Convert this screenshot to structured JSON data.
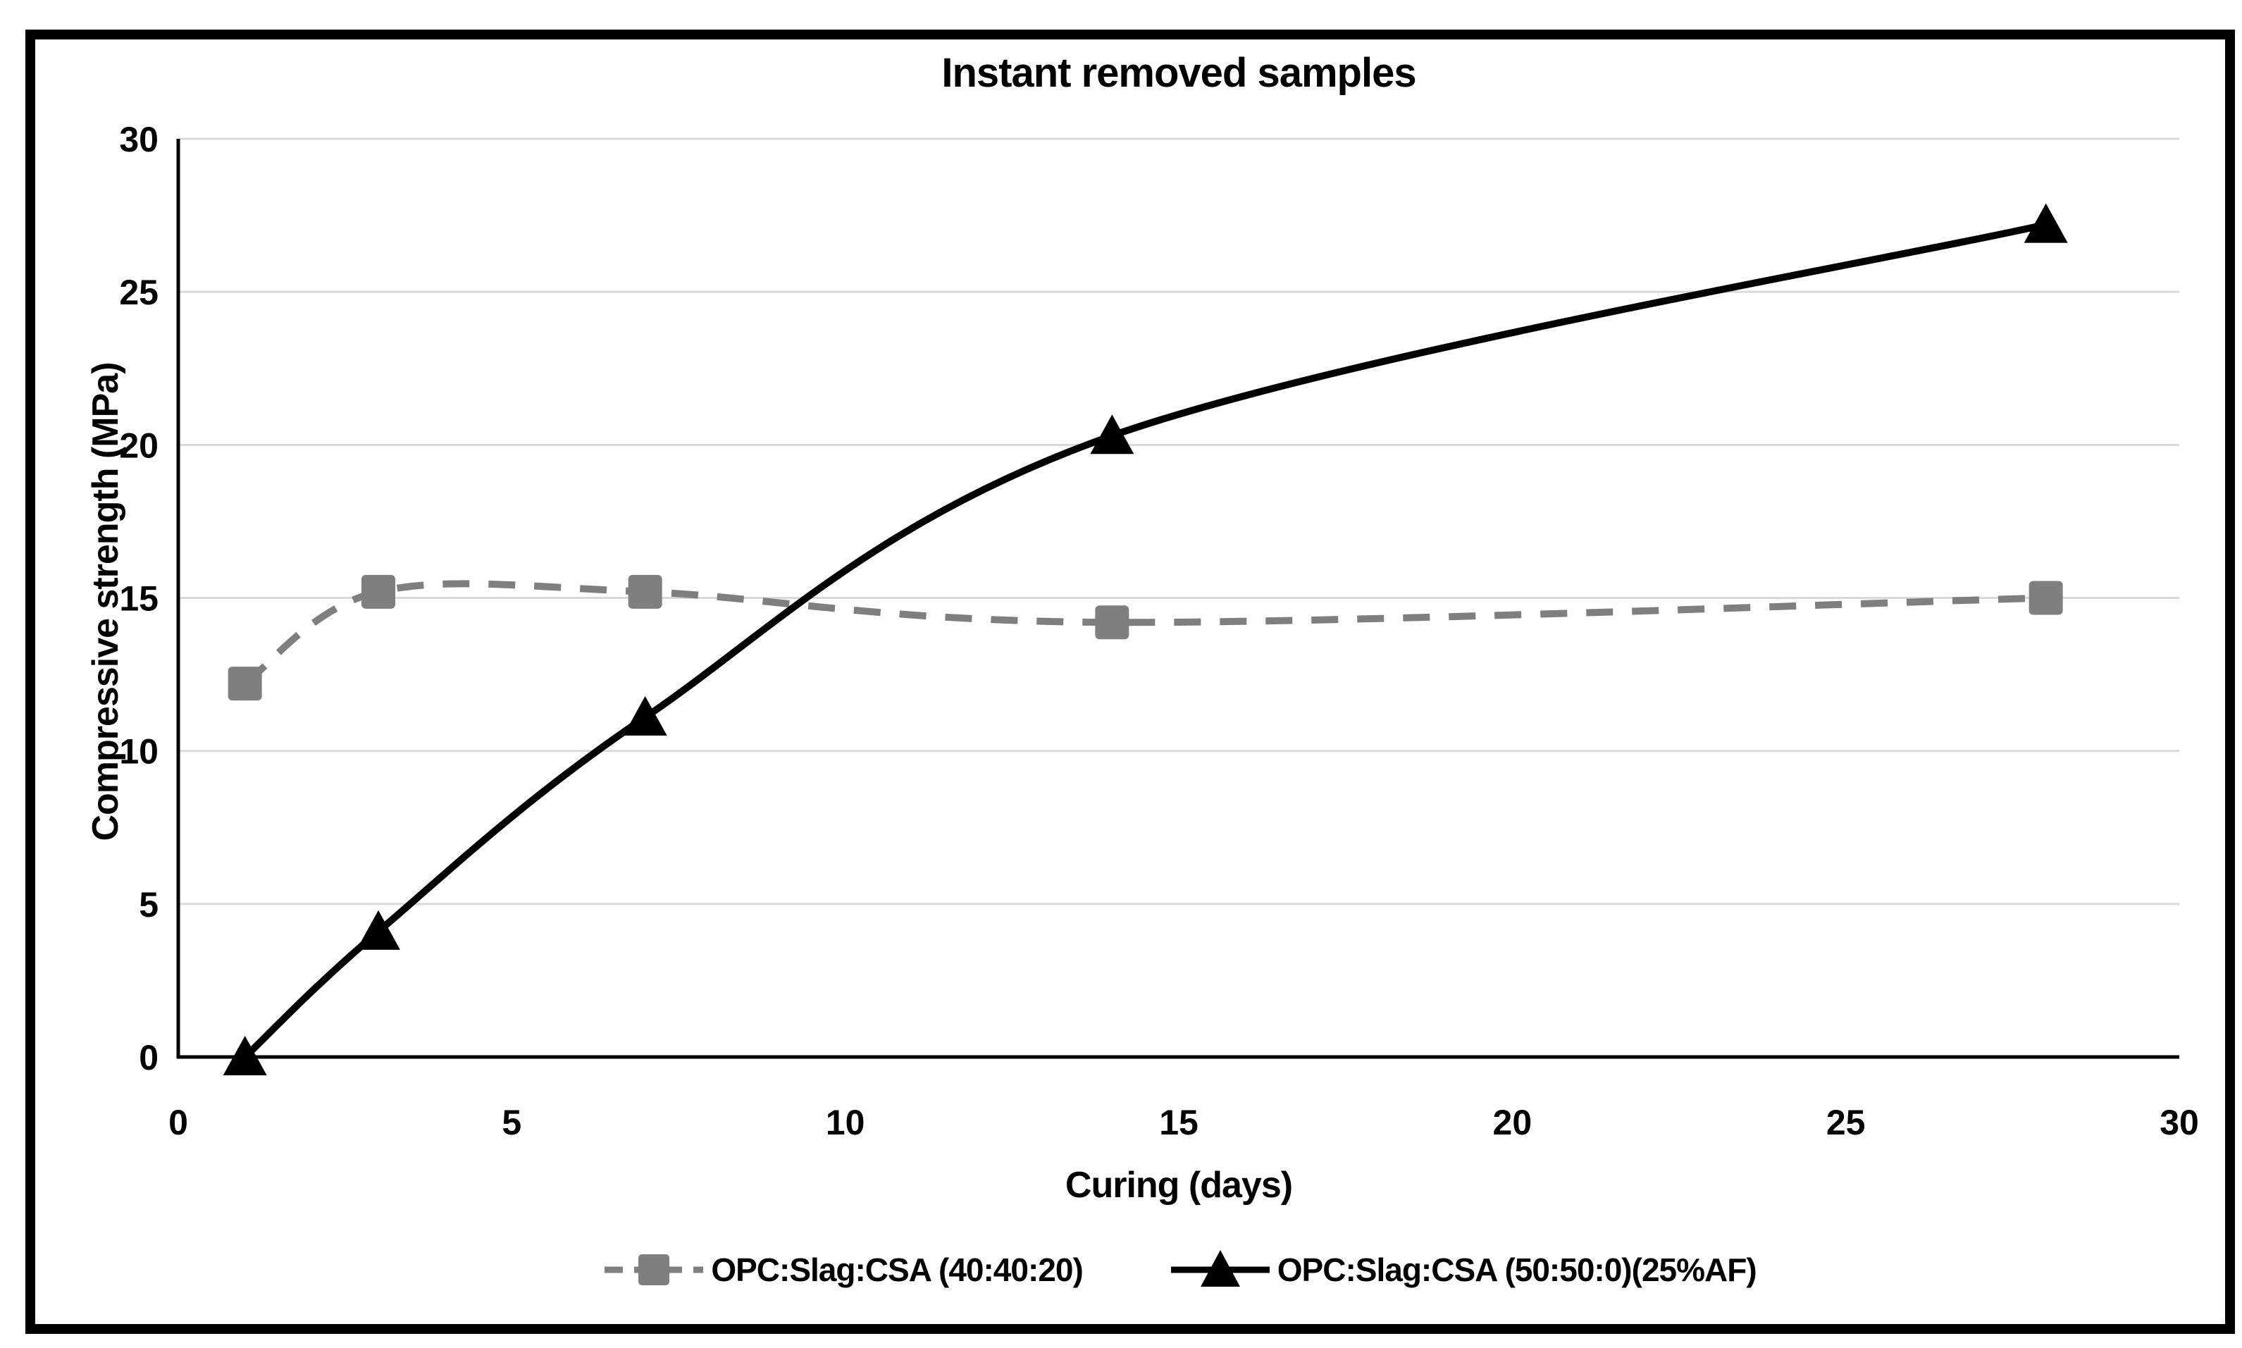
{
  "chart_data": {
    "type": "line",
    "title": "Instant removed samples",
    "xlabel": "Curing (days)",
    "ylabel": "Compressive strength (MPa)",
    "xlim": [
      0,
      30
    ],
    "ylim": [
      0,
      30
    ],
    "xticks": [
      0,
      5,
      10,
      15,
      20,
      25,
      30
    ],
    "yticks": [
      0,
      5,
      10,
      15,
      20,
      25,
      30
    ],
    "grid": "horizontal",
    "gridline_color": "#d9d9d9",
    "axis_color": "#000000",
    "legend_position": "bottom-center",
    "x": [
      1,
      3,
      7,
      14,
      28
    ],
    "series": [
      {
        "name": "OPC:Slag:CSA (40:40:20)",
        "marker": "square",
        "line_style": "dashed",
        "color": "#7f7f7f",
        "values": [
          12.2,
          15.2,
          15.2,
          14.2,
          15.0
        ]
      },
      {
        "name": "OPC:Slag:CSA (50:50:0)(25%AF)",
        "marker": "triangle",
        "line_style": "solid",
        "color": "#000000",
        "values": [
          0.0,
          4.1,
          11.1,
          20.3,
          27.2
        ]
      }
    ]
  }
}
